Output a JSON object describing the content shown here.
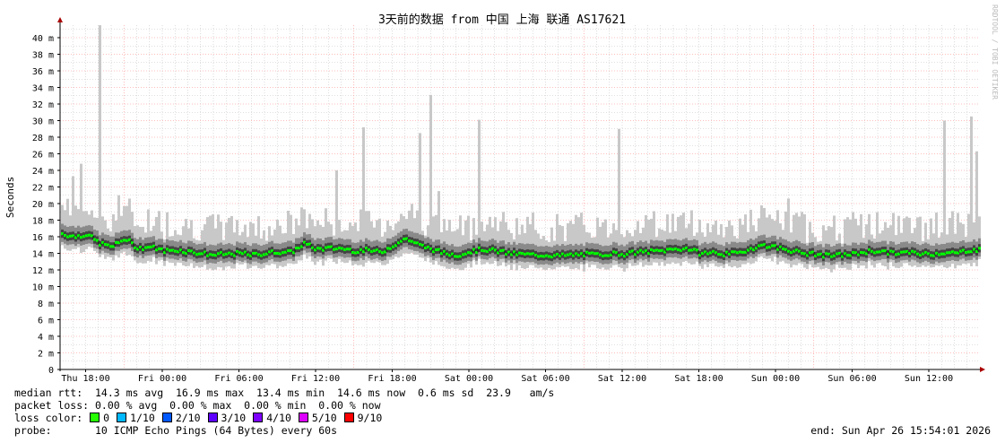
{
  "chart_data": {
    "type": "line",
    "title": "3天前的数据 from  中国 上海 联通 AS17621",
    "ylabel": "Seconds",
    "ylim": [
      0,
      42
    ],
    "y_ticks": [
      "0",
      "2 m",
      "4 m",
      "6 m",
      "8 m",
      "10 m",
      "12 m",
      "14 m",
      "16 m",
      "18 m",
      "20 m",
      "22 m",
      "24 m",
      "26 m",
      "28 m",
      "30 m",
      "32 m",
      "34 m",
      "36 m",
      "38 m",
      "40 m"
    ],
    "y_tick_values_ms": [
      0,
      2,
      4,
      6,
      8,
      10,
      12,
      14,
      16,
      18,
      20,
      22,
      24,
      26,
      28,
      30,
      32,
      34,
      36,
      38,
      40
    ],
    "x_range": [
      "Thu 16:00",
      "Sun 16:00"
    ],
    "x_ticks": [
      "Thu 18:00",
      "Fri 00:00",
      "Fri 06:00",
      "Fri 12:00",
      "Fri 18:00",
      "Sat 00:00",
      "Sat 06:00",
      "Sat 12:00",
      "Sat 18:00",
      "Sun 00:00",
      "Sun 06:00",
      "Sun 12:00"
    ],
    "x_tick_hours": [
      2,
      8,
      14,
      20,
      26,
      32,
      38,
      44,
      50,
      56,
      62,
      68
    ],
    "grid": true,
    "watermark": "RRDTOOL / TOBI OETIKER",
    "median_ms_hourly": [
      16.4,
      16.0,
      16.3,
      15.2,
      14.8,
      15.8,
      14.6,
      14.8,
      14.3,
      14.4,
      14.2,
      14.0,
      13.8,
      13.9,
      14.0,
      13.8,
      14.0,
      14.2,
      14.1,
      15.2,
      14.5,
      14.6,
      14.6,
      14.3,
      14.4,
      14.1,
      15.0,
      15.8,
      15.0,
      14.5,
      14.0,
      13.8,
      14.2,
      14.5,
      14.3,
      14.0,
      13.9,
      13.8,
      13.8,
      13.7,
      13.8,
      13.9,
      13.8,
      14.0,
      13.9,
      14.1,
      14.2,
      14.3,
      14.5,
      14.6,
      14.0,
      14.1,
      13.9,
      14.0,
      14.6,
      15.0,
      14.7,
      14.4,
      14.0,
      13.9,
      13.7,
      13.8,
      13.9,
      14.2,
      14.3,
      14.0,
      14.1,
      14.0,
      13.9,
      14.1,
      14.0,
      14.4
    ],
    "max_spikes": [
      {
        "hour": 1.0,
        "ms": 23.3
      },
      {
        "hour": 1.5,
        "ms": 24.8
      },
      {
        "hour": 3.1,
        "ms": 41.5
      },
      {
        "hour": 4.4,
        "ms": 21.0
      },
      {
        "hour": 5.3,
        "ms": 20.6
      },
      {
        "hour": 21.6,
        "ms": 24.0
      },
      {
        "hour": 23.7,
        "ms": 29.2
      },
      {
        "hour": 28.0,
        "ms": 28.5
      },
      {
        "hour": 29.0,
        "ms": 33.1
      },
      {
        "hour": 29.6,
        "ms": 21.5
      },
      {
        "hour": 32.8,
        "ms": 30.1
      },
      {
        "hour": 43.6,
        "ms": 29.0
      },
      {
        "hour": 57.0,
        "ms": 20.6
      },
      {
        "hour": 69.2,
        "ms": 30.0
      },
      {
        "hour": 71.2,
        "ms": 30.5
      },
      {
        "hour": 71.6,
        "ms": 26.3
      }
    ],
    "colors": {
      "median": "#00ff00",
      "smoke": "#c8c8c8",
      "major_grid": "#ff8080",
      "minor_grid": "#c0c0c0",
      "axis": "#000000"
    }
  },
  "legend": {
    "median_rtt": "median rtt:  14.3 ms avg  16.9 ms max  13.4 ms min  14.6 ms now  0.6 ms sd  23.9   am/s",
    "packet_loss": "packet loss: 0.00 % avg  0.00 % max  0.00 % min  0.00 % now",
    "loss_color_label": "loss color:",
    "loss_colors": [
      {
        "label": "0",
        "color": "#26ff00"
      },
      {
        "label": "1/10",
        "color": "#00b8ff"
      },
      {
        "label": "2/10",
        "color": "#0059ff"
      },
      {
        "label": "3/10",
        "color": "#5e00ff"
      },
      {
        "label": "4/10",
        "color": "#7e00ff"
      },
      {
        "label": "5/10",
        "color": "#dd00ff"
      },
      {
        "label": "9/10",
        "color": "#ff0000"
      }
    ],
    "probe": "probe:       10 ICMP Echo Pings (64 Bytes) every 60s",
    "end": "end: Sun Apr 26 15:54:01 2026"
  }
}
